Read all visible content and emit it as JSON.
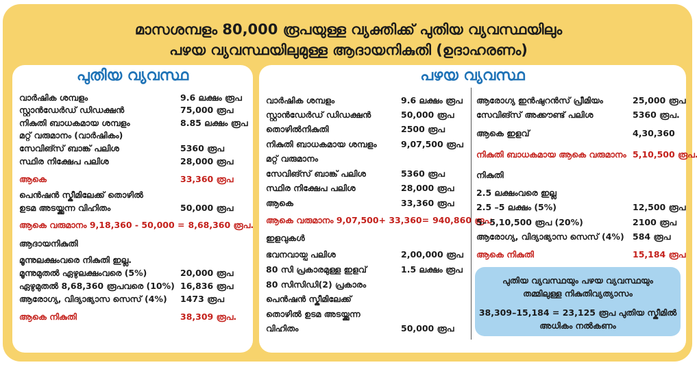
{
  "title": {
    "line1": "മാസശമ്പളം 80,000 രൂപയുള്ള വ്യക്തിക്ക് പുതിയ വ്യവസ്ഥയിലും",
    "line2": "പഴയ വ്യവസ്ഥയിലുമുള്ള ആദായനികുതി (ഉദാഹരണം)"
  },
  "colors": {
    "background": "#f7d36c",
    "heading": "#1f73b7",
    "highlight": "#c4211c",
    "note_box": "#a9d4ef"
  },
  "new_regime": {
    "heading": "പുതിയ വ്യവസ്ഥ",
    "rows": [
      {
        "label": "വാർഷിക ശമ്പളം",
        "value": "9.6 ലക്ഷം രൂപ"
      },
      {
        "label": "സ്റ്റാൻഡേർഡ് ഡിഡക്ഷൻ",
        "value": "75,000 രൂപ"
      },
      {
        "label": "നികുതി ബാധകമായ ശമ്പളം",
        "value": "8.85 ലക്ഷം രൂപ"
      },
      {
        "label": "മറ്റ് വരുമാനം (വാർഷികം)",
        "value": ""
      },
      {
        "label": "സേവിങ്സ് ബാങ്ക് പലിശ",
        "value": "5360 രൂപ"
      },
      {
        "label": "സ്ഥിര നിക്ഷേപ പലിശ",
        "value": "28,000 രൂപ"
      },
      {
        "label": "ആകെ",
        "value": "33,360 രൂപ",
        "highlight": true
      },
      {
        "label": "പെൻഷൻ സ്കീമിലേക്ക് തൊഴിൽ",
        "value": ""
      },
      {
        "label": "ഉടമ അടയ്ക്കുന്ന വിഹിതം",
        "value": "50,000 രൂപ"
      },
      {
        "label": "ആകെ വരുമാനം 9,18,360 - 50,000 =",
        "value": "8,68,360 രൂപ.",
        "highlight": true
      },
      {
        "label": "ആദായനികുതി",
        "value": ""
      },
      {
        "label": "മൂന്നുലക്ഷംവരെ നികുതി ഇല്ല.",
        "value": ""
      },
      {
        "label": "മൂന്നുമുതൽ ഏഴുലക്ഷംവരെ (5%)",
        "value": "20,000 രൂപ"
      },
      {
        "label": "ഏഴുമുതൽ 8,68,360 രൂപവരെ (10%)",
        "value": "16,836 രൂപ"
      },
      {
        "label": "ആരോഗ്യ, വിദ്യാഭ്യാസ സെസ് (4%)",
        "value": "1473 രൂപ"
      },
      {
        "label": "ആകെ നികുതി",
        "value": "38,309 രൂപ.",
        "highlight": true
      }
    ]
  },
  "old_regime": {
    "heading": "പഴയ വ്യവസ്ഥ",
    "rows_left": [
      {
        "label": "വാർഷിക ശമ്പളം",
        "value": "9.6 ലക്ഷം രൂപ"
      },
      {
        "label": "സ്റ്റാൻഡേർഡ് ഡിഡക്ഷൻ",
        "value": "50,000 രൂപ"
      },
      {
        "label": "തൊഴിൽനികുതി",
        "value": "2500 രൂപ"
      },
      {
        "label": "നികുതി ബാധകമായ ശമ്പളം",
        "value": "9,07,500 രൂപ"
      },
      {
        "label": "മറ്റ് വരുമാനം",
        "value": ""
      },
      {
        "label": "സേവിങ്സ് ബാങ്ക് പലിശ",
        "value": "5360 രൂപ"
      },
      {
        "label": "സ്ഥിര നിക്ഷേപ പലിശ",
        "value": "28,000 രൂപ"
      },
      {
        "label": "ആകെ",
        "value": "33,360 രൂപ"
      },
      {
        "label": "ആകെ വരുമാനം  9,07,500+  33,360=",
        "value": "940,860 രൂപ",
        "highlight": true
      },
      {
        "label": "ഇളവുകൾ",
        "value": ""
      },
      {
        "label": "ഭവനവായ്പ പലിശ",
        "value": "2,00,000 രൂപ"
      },
      {
        "label": "80 സി പ്രകാരമുള്ള ഇളവ്",
        "value": "1.5 ലക്ഷം രൂപ"
      },
      {
        "label": "80 സിസിഡി(2) പ്രകാരം",
        "value": ""
      },
      {
        "label": "പെൻഷൻ സ്കീമിലേക്ക്",
        "value": ""
      },
      {
        "label": "തൊഴിൽ ഉടമ അടയ്ക്കുന്ന",
        "value": ""
      },
      {
        "label": "വിഹിതം",
        "value": "50,000 രൂപ"
      }
    ],
    "rows_right": [
      {
        "label": "ആരോഗ്യ ഇൻഷുറൻസ് പ്രീമിയം",
        "value": "25,000 രൂപ"
      },
      {
        "label": "സേവിങ്സ് അക്കൗണ്ട് പലിശ",
        "value": "5360 രൂപ."
      },
      {
        "label": "ആകെ ഇളവ്",
        "value": "4,30,360"
      },
      {
        "label": "നികുതി ബാധകമായ ആകെ വരുമാനം",
        "value": "5,10,500 രൂപ.",
        "highlight": true
      },
      {
        "label": "നികുതി",
        "value": ""
      },
      {
        "label": "2.5 ലക്ഷംവരെ ഇല്ല",
        "value": ""
      },
      {
        "label": "2.5 –5 ലക്ഷം   (5%)",
        "value": "12,500 രൂപ"
      },
      {
        "label": "5– 5,10,500 രൂപ (20%)",
        "value": "2100 രൂപ"
      },
      {
        "label": "ആരോഗ്യ, വിദ്യാഭ്യാസ സെസ് (4%)",
        "value": "584 രൂപ"
      },
      {
        "label": "ആകെ നികുതി",
        "value": "15,184 രൂപ",
        "highlight": true
      }
    ]
  },
  "comparison": {
    "line1": "പുതിയ വ്യവസ്ഥയും പഴയ വ്യവസ്ഥയും",
    "line2": "തമ്മിലുള്ള നികുതിവ്യത്യാസം",
    "line3": "38,309–15,184 = 23,125 രൂപ പുതിയ സ്കീമിൽ",
    "line4": "അധികം നൽകണം"
  }
}
